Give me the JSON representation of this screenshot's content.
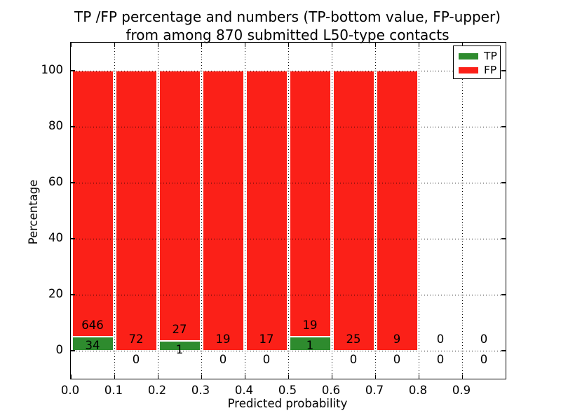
{
  "title": {
    "line1": "TP /FP percentage and numbers (TP-bottom value, FP-upper)",
    "line2": "from among 870 submitted L50-type contacts"
  },
  "chart_data": {
    "type": "bar",
    "variant": "stacked-percentage",
    "title": "TP /FP percentage and numbers (TP-bottom value, FP-upper) from among 870 submitted L50-type contacts",
    "total_submitted": 870,
    "xlabel": "Predicted probability",
    "ylabel": "Percentage",
    "bin_edges": [
      0.0,
      0.1,
      0.2,
      0.3,
      0.4,
      0.5,
      0.6,
      0.7,
      0.8,
      0.9,
      1.0
    ],
    "series": [
      {
        "name": "TP",
        "color": "#2e8b2e",
        "counts": [
          34,
          0,
          1,
          0,
          0,
          1,
          0,
          0,
          0,
          0
        ]
      },
      {
        "name": "FP",
        "color": "#fb2018",
        "counts": [
          646,
          72,
          27,
          19,
          17,
          19,
          25,
          9,
          0,
          0
        ]
      }
    ],
    "bar_height_rule": "each bar normalized to 100%; green TP segment = TP/(TP+FP)*100",
    "x_tick_labels": [
      "0.0",
      "0.1",
      "0.2",
      "0.3",
      "0.4",
      "0.5",
      "0.6",
      "0.7",
      "0.8",
      "0.9"
    ],
    "y_ticks": [
      0,
      20,
      40,
      60,
      80,
      100
    ],
    "xlim": [
      0.0,
      1.0
    ],
    "ylim": [
      -10,
      110
    ],
    "grid": "dotted both axes",
    "legend_position": "upper right",
    "legend": [
      {
        "label": "TP",
        "color": "#2e8b2e"
      },
      {
        "label": "FP",
        "color": "#fb2018"
      }
    ],
    "axes_color": "#000000",
    "background_color": "#ffffff"
  }
}
